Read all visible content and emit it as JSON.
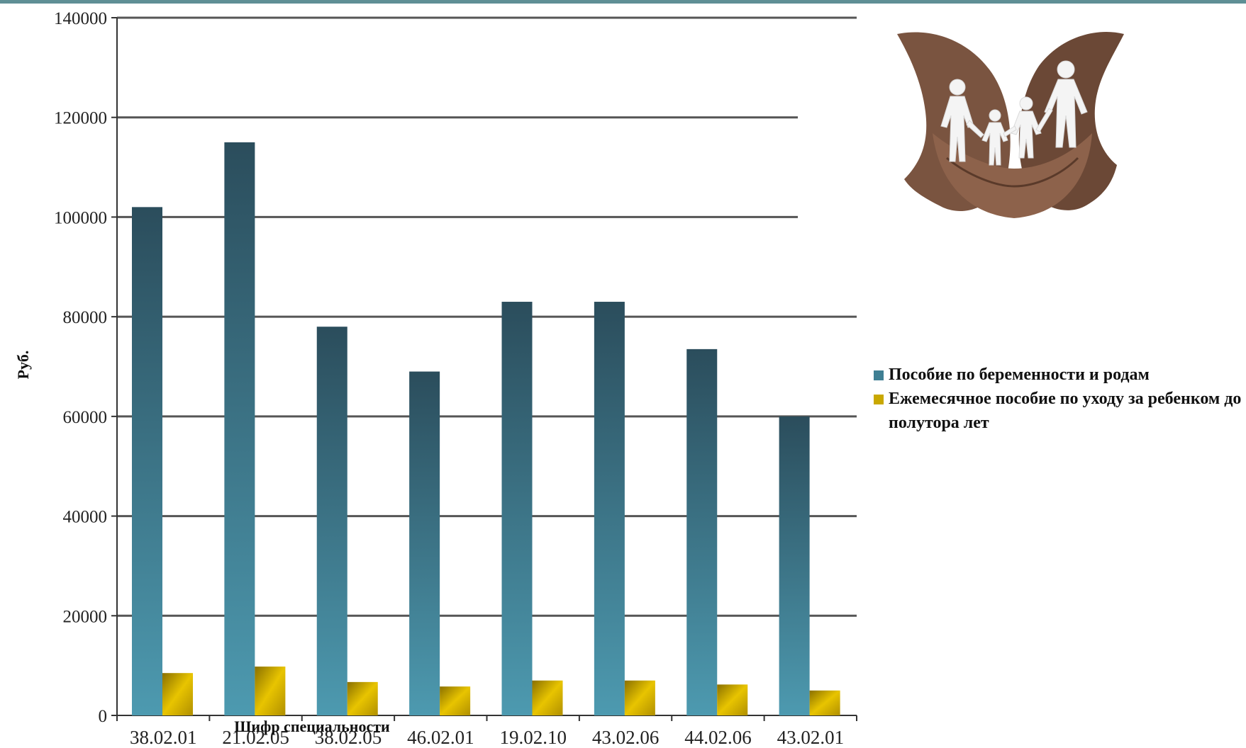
{
  "colors": {
    "series_1": "#3f7f93",
    "series_2": "#c9a800",
    "grid": "#555555",
    "frame_top": "#5f8f95"
  },
  "image": {
    "icon": "hands-holding-paper-family-icon"
  },
  "chart_data": {
    "type": "bar",
    "xlabel": "Шифр специальности",
    "ylabel": "Руб.",
    "ylim": [
      0,
      140000
    ],
    "yticks": [
      0,
      20000,
      40000,
      60000,
      80000,
      100000,
      120000,
      140000
    ],
    "ytick_labels": [
      "0",
      "20000",
      "40000",
      "60000",
      "80000",
      "100000",
      "120000",
      "140000"
    ],
    "categories": [
      "38.02.01",
      "21.02.05",
      "38.02.05",
      "46.02.01",
      "19.02.10",
      "43.02.06",
      "44.02.06",
      "43.02.01"
    ],
    "grid": true,
    "legend_position": "right",
    "series": [
      {
        "name": "Пособие по беременности и родам",
        "color": "#3f7f93",
        "values": [
          102000,
          115000,
          78000,
          69000,
          83000,
          83000,
          73500,
          60000
        ]
      },
      {
        "name": "Ежемесячное пособие по уходу за ребенком до полутора лет",
        "color": "#c9a800",
        "values": [
          8500,
          9800,
          6700,
          5800,
          7000,
          7000,
          6200,
          5000
        ]
      }
    ]
  }
}
